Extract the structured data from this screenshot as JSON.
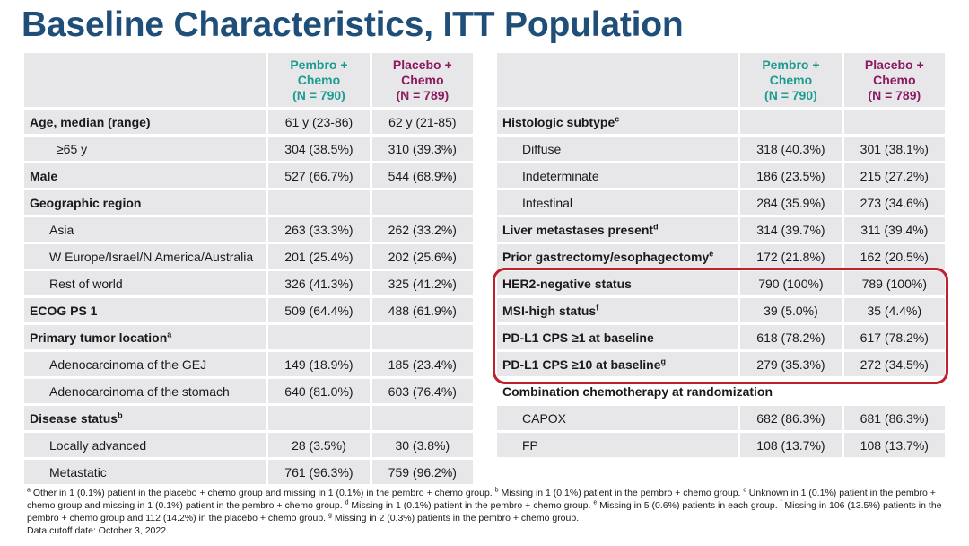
{
  "title": "Baseline Characteristics, ITT Population",
  "headers": {
    "pembro": [
      "Pembro +",
      "Chemo",
      "(N = 790)"
    ],
    "placebo": [
      "Placebo +",
      "Chemo",
      "(N = 789)"
    ]
  },
  "left_rows": [
    {
      "label": "Age, median (range)",
      "sup": "",
      "style": "bold",
      "pembro": "61 y (23-86)",
      "placebo": "62 y (21-85)"
    },
    {
      "label": "≥65 y",
      "sup": "",
      "style": "sub2",
      "pembro": "304 (38.5%)",
      "placebo": "310 (39.3%)"
    },
    {
      "label": "Male",
      "sup": "",
      "style": "bold",
      "pembro": "527 (66.7%)",
      "placebo": "544 (68.9%)"
    },
    {
      "label": "Geographic region",
      "sup": "",
      "style": "bold",
      "pembro": "",
      "placebo": ""
    },
    {
      "label": "Asia",
      "sup": "",
      "style": "sub",
      "pembro": "263 (33.3%)",
      "placebo": "262 (33.2%)"
    },
    {
      "label": "W Europe/Israel/N America/Australia",
      "sup": "",
      "style": "sub",
      "pembro": "201 (25.4%)",
      "placebo": "202 (25.6%)"
    },
    {
      "label": "Rest of world",
      "sup": "",
      "style": "sub",
      "pembro": "326 (41.3%)",
      "placebo": "325 (41.2%)"
    },
    {
      "label": "ECOG PS 1",
      "sup": "",
      "style": "bold",
      "pembro": "509 (64.4%)",
      "placebo": "488 (61.9%)"
    },
    {
      "label": "Primary tumor location",
      "sup": "a",
      "style": "bold",
      "pembro": "",
      "placebo": ""
    },
    {
      "label": "Adenocarcinoma of the GEJ",
      "sup": "",
      "style": "sub",
      "pembro": "149 (18.9%)",
      "placebo": "185 (23.4%)"
    },
    {
      "label": "Adenocarcinoma of the stomach",
      "sup": "",
      "style": "sub",
      "pembro": "640 (81.0%)",
      "placebo": "603 (76.4%)"
    },
    {
      "label": "Disease status",
      "sup": "b",
      "style": "bold",
      "pembro": "",
      "placebo": ""
    },
    {
      "label": "Locally advanced",
      "sup": "",
      "style": "sub",
      "pembro": "28 (3.5%)",
      "placebo": "30 (3.8%)"
    },
    {
      "label": "Metastatic",
      "sup": "",
      "style": "sub",
      "pembro": "761 (96.3%)",
      "placebo": "759 (96.2%)"
    }
  ],
  "right_rows": [
    {
      "label": "Histologic subtype",
      "sup": "c",
      "style": "bold",
      "pembro": "",
      "placebo": ""
    },
    {
      "label": "Diffuse",
      "sup": "",
      "style": "sub",
      "pembro": "318 (40.3%)",
      "placebo": "301 (38.1%)"
    },
    {
      "label": "Indeterminate",
      "sup": "",
      "style": "sub",
      "pembro": "186 (23.5%)",
      "placebo": "215 (27.2%)"
    },
    {
      "label": "Intestinal",
      "sup": "",
      "style": "sub",
      "pembro": "284 (35.9%)",
      "placebo": "273 (34.6%)"
    },
    {
      "label": "Liver metastases present",
      "sup": "d",
      "style": "bold",
      "pembro": "314 (39.7%)",
      "placebo": "311 (39.4%)"
    },
    {
      "label": "Prior gastrectomy/esophagectomy",
      "sup": "e",
      "style": "bold",
      "pembro": "172 (21.8%)",
      "placebo": "162 (20.5%)"
    },
    {
      "label": "HER2-negative status",
      "sup": "",
      "style": "bold",
      "pembro": "790 (100%)",
      "placebo": "789 (100%)"
    },
    {
      "label": "MSI-high status",
      "sup": "f",
      "style": "bold",
      "pembro": "39 (5.0%)",
      "placebo": "35 (4.4%)"
    },
    {
      "label": "PD-L1 CPS ≥1 at baseline",
      "sup": "",
      "style": "bold",
      "pembro": "618 (78.2%)",
      "placebo": "617 (78.2%)"
    },
    {
      "label": "PD-L1 CPS ≥10 at baseline",
      "sup": "g",
      "style": "bold",
      "pembro": "279 (35.3%)",
      "placebo": "272 (34.5%)"
    },
    {
      "label": "Combination chemotherapy at randomization",
      "sup": "",
      "style": "bold-span",
      "pembro": "",
      "placebo": ""
    },
    {
      "label": "CAPOX",
      "sup": "",
      "style": "sub",
      "pembro": "682 (86.3%)",
      "placebo": "681 (86.3%)"
    },
    {
      "label": "FP",
      "sup": "",
      "style": "sub",
      "pembro": "108 (13.7%)",
      "placebo": "108 (13.7%)"
    }
  ],
  "footnotes": [
    {
      "mark": "a",
      "text": " Other in 1 (0.1%) patient in the placebo + chemo group and missing in 1 (0.1%) in the pembro + chemo group. "
    },
    {
      "mark": "b",
      "text": " Missing in 1 (0.1%) patient in the pembro + chemo group. "
    },
    {
      "mark": "c",
      "text": " Unknown in 1 (0.1%) patient in the pembro + chemo group and missing in 1 (0.1%) patient in the pembro + chemo group. "
    },
    {
      "mark": "d",
      "text": " Missing in 1 (0.1%) patient in the pembro + chemo group. "
    },
    {
      "mark": "e",
      "text": " Missing in 5 (0.6%) patients in each group. "
    },
    {
      "mark": "f",
      "text": " Missing in 106 (13.5%) patients in the pembro + chemo group and 112 (14.2%) in the placebo + chemo group. "
    },
    {
      "mark": "g",
      "text": " Missing in 2 (0.3%) patients in the pembro + chemo group."
    }
  ],
  "cutoff": "Data cutoff date: October 3, 2022."
}
